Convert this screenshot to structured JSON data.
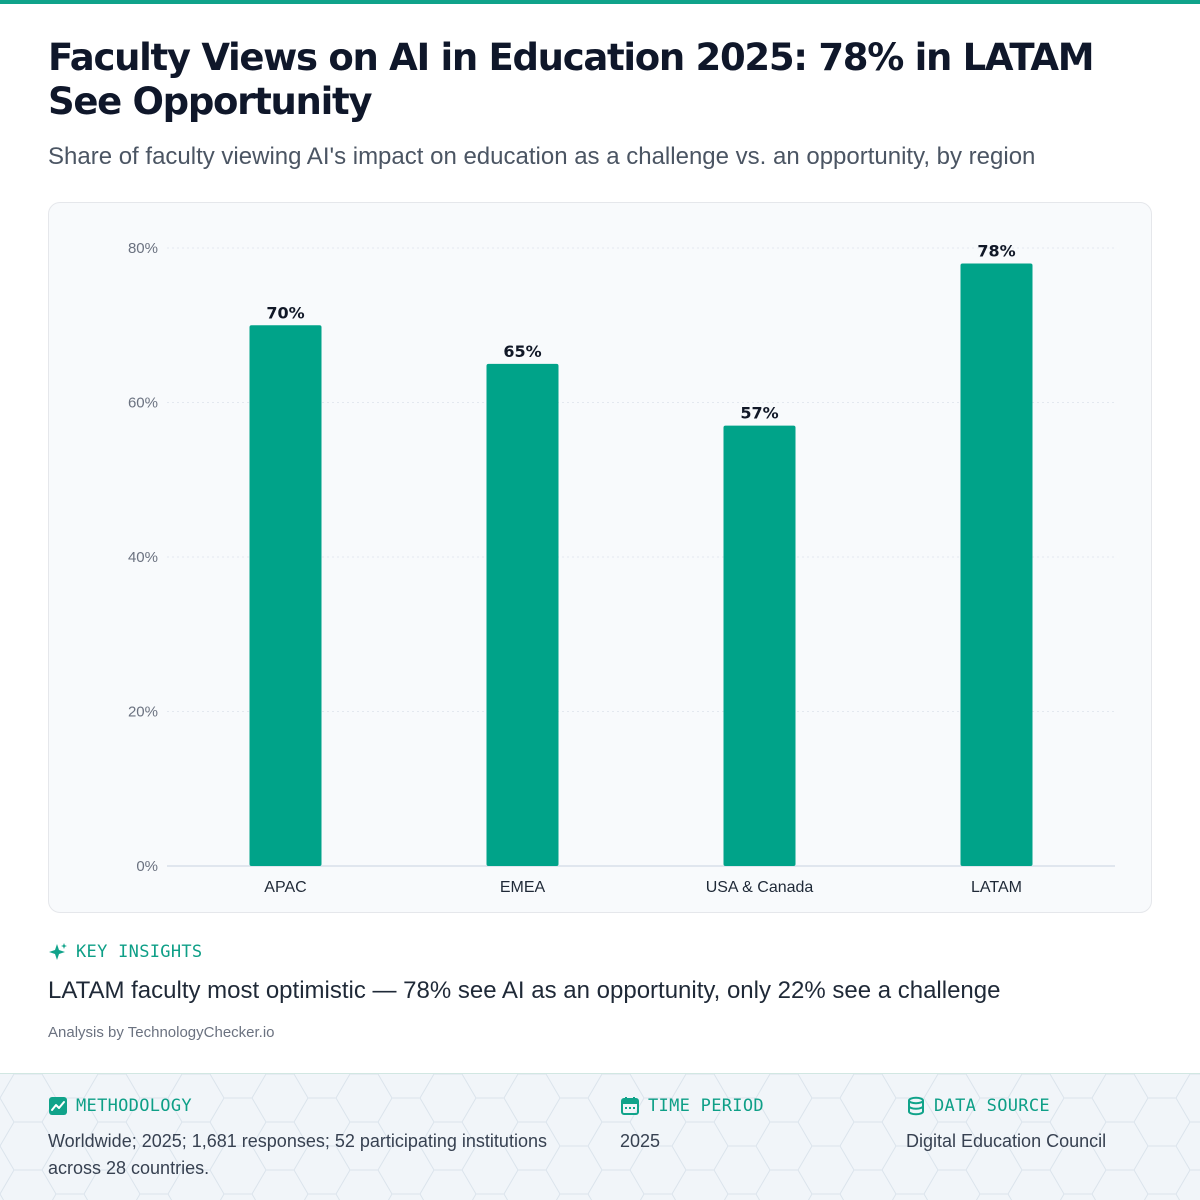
{
  "header": {
    "title": "Faculty Views on AI in Education 2025: 78% in LATAM See Opportunity",
    "subtitle": "Share of faculty viewing AI's impact on education as a challenge vs. an opportunity, by region"
  },
  "colors": {
    "accent": "#10a38a",
    "bar": "#00a389",
    "text": "#0f172a",
    "muted": "#4b5563"
  },
  "chart_data": {
    "type": "bar",
    "categories": [
      "APAC",
      "EMEA",
      "USA & Canada",
      "LATAM"
    ],
    "values": [
      70,
      65,
      57,
      78
    ],
    "value_labels": [
      "70%",
      "65%",
      "57%",
      "78%"
    ],
    "ylim": [
      0,
      80
    ],
    "y_ticks": [
      0,
      20,
      40,
      60,
      80
    ],
    "y_tick_labels": [
      "0%",
      "20%",
      "40%",
      "60%",
      "80%"
    ],
    "grid": true,
    "legend": "none"
  },
  "insights": {
    "label": "KEY INSIGHTS",
    "icon": "sparkle-icon",
    "text": "LATAM faculty most optimistic — 78% see AI as an opportunity, only 22% see a challenge"
  },
  "credit": "Analysis by TechnologyChecker.io",
  "footer": {
    "methodology": {
      "label": "METHODOLOGY",
      "icon": "chart-line-icon",
      "text": "Worldwide; 2025; 1,681 responses; 52 participating institutions across 28 countries."
    },
    "time_period": {
      "label": "TIME PERIOD",
      "icon": "calendar-icon",
      "text": "2025"
    },
    "data_source": {
      "label": "DATA SOURCE",
      "icon": "database-icon",
      "text": "Digital Education Council"
    }
  }
}
